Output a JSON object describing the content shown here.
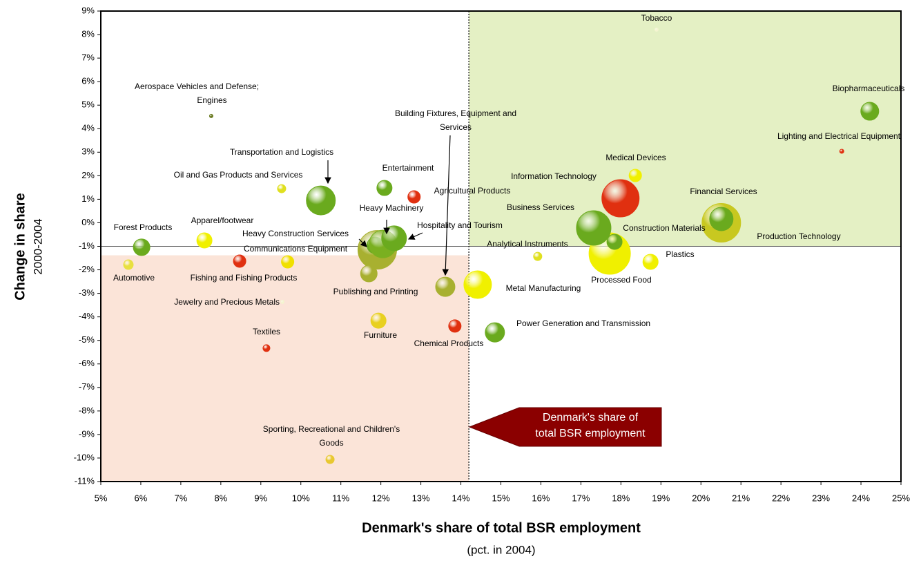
{
  "chart_data": {
    "type": "scatter",
    "ylabel": "Change in share",
    "ylabel2": "2000-2004",
    "xlabel": "Denmark's share of total BSR employment",
    "xlabel2": "(pct. in 2004)",
    "annotation": [
      "Denmark's share of",
      "total BSR employment"
    ],
    "xlim": [
      5,
      25
    ],
    "ylim": [
      -11,
      9
    ],
    "xticks": [
      {
        "value": 5,
        "label": "5%"
      },
      {
        "value": 6,
        "label": "6%"
      },
      {
        "value": 7,
        "label": "7%"
      },
      {
        "value": 8,
        "label": "8%"
      },
      {
        "value": 9,
        "label": "9%"
      },
      {
        "value": 10,
        "label": "10%"
      },
      {
        "value": 11,
        "label": "11%"
      },
      {
        "value": 12,
        "label": "12%"
      },
      {
        "value": 13,
        "label": "13%"
      },
      {
        "value": 14,
        "label": "14%"
      },
      {
        "value": 15,
        "label": "15%"
      },
      {
        "value": 16,
        "label": "16%"
      },
      {
        "value": 17,
        "label": "17%"
      },
      {
        "value": 18,
        "label": "18%"
      },
      {
        "value": 19,
        "label": "19%"
      },
      {
        "value": 20,
        "label": "20%"
      },
      {
        "value": 21,
        "label": "21%"
      },
      {
        "value": 22,
        "label": "22%"
      },
      {
        "value": 23,
        "label": "23%"
      },
      {
        "value": 24,
        "label": "24%"
      },
      {
        "value": 25,
        "label": "25%"
      }
    ],
    "yticks": [
      {
        "value": 9,
        "label": "9%"
      },
      {
        "value": 8,
        "label": "8%"
      },
      {
        "value": 7,
        "label": "7%"
      },
      {
        "value": 6,
        "label": "6%"
      },
      {
        "value": 5,
        "label": "5%"
      },
      {
        "value": 4,
        "label": "4%"
      },
      {
        "value": 3,
        "label": "3%"
      },
      {
        "value": 2,
        "label": "2%"
      },
      {
        "value": 1,
        "label": "1%"
      },
      {
        "value": 0,
        "label": "0%"
      },
      {
        "value": -1,
        "label": "-1%"
      },
      {
        "value": -2,
        "label": "-2%"
      },
      {
        "value": -3,
        "label": "-3%"
      },
      {
        "value": -4,
        "label": "-4%"
      },
      {
        "value": -5,
        "label": "-5%"
      },
      {
        "value": -6,
        "label": "-6%"
      },
      {
        "value": -7,
        "label": "-7%"
      },
      {
        "value": -8,
        "label": "-8%"
      },
      {
        "value": -9,
        "label": "-9%"
      },
      {
        "value": -10,
        "label": "-10%"
      },
      {
        "value": -11,
        "label": "-11%"
      }
    ],
    "vline": 14.2,
    "hline": -1,
    "points": [
      {
        "label": "Tobacco",
        "x": 18.89,
        "y": 8.21,
        "size": 2.5,
        "color": "#f4f4d0"
      },
      {
        "label": "Biopharmaceuticals",
        "x": 24.22,
        "y": 4.74,
        "size": 13,
        "color": "#6aaa1e"
      },
      {
        "label": "Lighting and Electrical Equipment",
        "x": 23.52,
        "y": 3.04,
        "size": 3,
        "color": "#e03010"
      },
      {
        "label": "Production Technology",
        "x": 20.51,
        "y": 0.0,
        "size": 28,
        "color": "#c8c820"
      },
      {
        "label": "Financial Services",
        "x": 20.51,
        "y": 0.16,
        "size": 17,
        "color": "#6aaa1e"
      },
      {
        "label": "Processed Food",
        "x": 17.72,
        "y": -1.31,
        "size": 30,
        "color": "#f0f000"
      },
      {
        "label": "Information Technology",
        "x": 17.99,
        "y": 1.04,
        "size": 27,
        "color": "#e03010"
      },
      {
        "label": "Business Services",
        "x": 17.32,
        "y": -0.22,
        "size": 25,
        "color": "#6aaa1e"
      },
      {
        "label": "Medical Devices",
        "x": 18.36,
        "y": 2.01,
        "size": 9,
        "color": "#f0f000"
      },
      {
        "label": "Construction Materials",
        "x": 17.84,
        "y": -0.81,
        "size": 11,
        "color": "#6aaa1e"
      },
      {
        "label": "Plastics",
        "x": 18.74,
        "y": -1.66,
        "size": 11,
        "color": "#f0f000"
      },
      {
        "label": "Analytical Instruments",
        "x": 15.92,
        "y": -1.43,
        "size": 6,
        "color": "#e0e020"
      },
      {
        "label": "Metal Manufacturing",
        "x": 14.42,
        "y": -2.63,
        "size": 20,
        "color": "#f0f000"
      },
      {
        "label": "Power Generation and Transmission",
        "x": 14.85,
        "y": -4.66,
        "size": 14,
        "color": "#6aaa1e"
      },
      {
        "label": "Chemical Products",
        "x": 13.85,
        "y": -4.39,
        "size": 9,
        "color": "#e03010"
      },
      {
        "label": [
          "Building Fixtures, Equipment and",
          "Services"
        ],
        "x": 13.61,
        "y": -2.72,
        "size": 14,
        "color": "#a8b030"
      },
      {
        "label": "Agricultural Products",
        "x": 12.83,
        "y": 1.1,
        "size": 9,
        "color": "#e03010"
      },
      {
        "label": "Entertainment",
        "x": 12.09,
        "y": 1.48,
        "size": 11,
        "color": "#6aaa1e"
      },
      {
        "label": "Transportation and Logistics",
        "x": 10.5,
        "y": 0.95,
        "size": 21,
        "color": "#6aaa1e"
      },
      {
        "label": "Oil and Gas Products and Services",
        "x": 9.52,
        "y": 1.45,
        "size": 6,
        "color": "#e0e020"
      },
      {
        "label": [
          "Aerospace Vehicles and Defense;",
          "Engines"
        ],
        "x": 7.76,
        "y": 4.54,
        "size": 2.5,
        "color": "#6a7a20"
      },
      {
        "label": "Heavy Construction Services",
        "x": 11.91,
        "y": -1.15,
        "size": 28,
        "color": "#a8b030"
      },
      {
        "label": "Communications Equipment",
        "x": 11.86,
        "y": -0.96,
        "size": 12,
        "color": "#6aaa1e"
      },
      {
        "label": "Heavy Machinery",
        "x": 12.05,
        "y": -0.9,
        "size": 20,
        "color": "#7ab020"
      },
      {
        "label": "Hospitality and Tourism",
        "x": 12.33,
        "y": -0.66,
        "size": 18,
        "color": "#6aaa1e"
      },
      {
        "label": "Publishing and Printing",
        "x": 11.7,
        "y": -2.16,
        "size": 12,
        "color": "#a8b030"
      },
      {
        "label": "Furniture",
        "x": 11.94,
        "y": -4.16,
        "size": 11,
        "color": "#e8d020"
      },
      {
        "label": [
          "Sporting, Recreational and Children's",
          "Goods"
        ],
        "x": 10.73,
        "y": -10.06,
        "size": 6,
        "color": "#e8c830"
      },
      {
        "label": "Textiles",
        "x": 9.14,
        "y": -5.33,
        "size": 5,
        "color": "#e03010"
      },
      {
        "label": "Jewelry and Precious Metals",
        "x": 9.54,
        "y": -3.36,
        "size": 2.5,
        "color": "#f4f4d0"
      },
      {
        "label": "Fishing and Fishing Products",
        "x": 8.47,
        "y": -1.63,
        "size": 9,
        "color": "#e03010"
      },
      {
        "label": null,
        "x": 9.67,
        "y": -1.66,
        "size": 9,
        "color": "#f0e000"
      },
      {
        "label": "Apparel/footwear",
        "x": 7.59,
        "y": -0.75,
        "size": 11,
        "color": "#f0f000"
      },
      {
        "label": "Forest Products",
        "x": 6.02,
        "y": -1.04,
        "size": 12,
        "color": "#6aaa1e"
      },
      {
        "label": "Automotive",
        "x": 5.69,
        "y": -1.78,
        "size": 7,
        "color": "#e8e040"
      }
    ]
  }
}
